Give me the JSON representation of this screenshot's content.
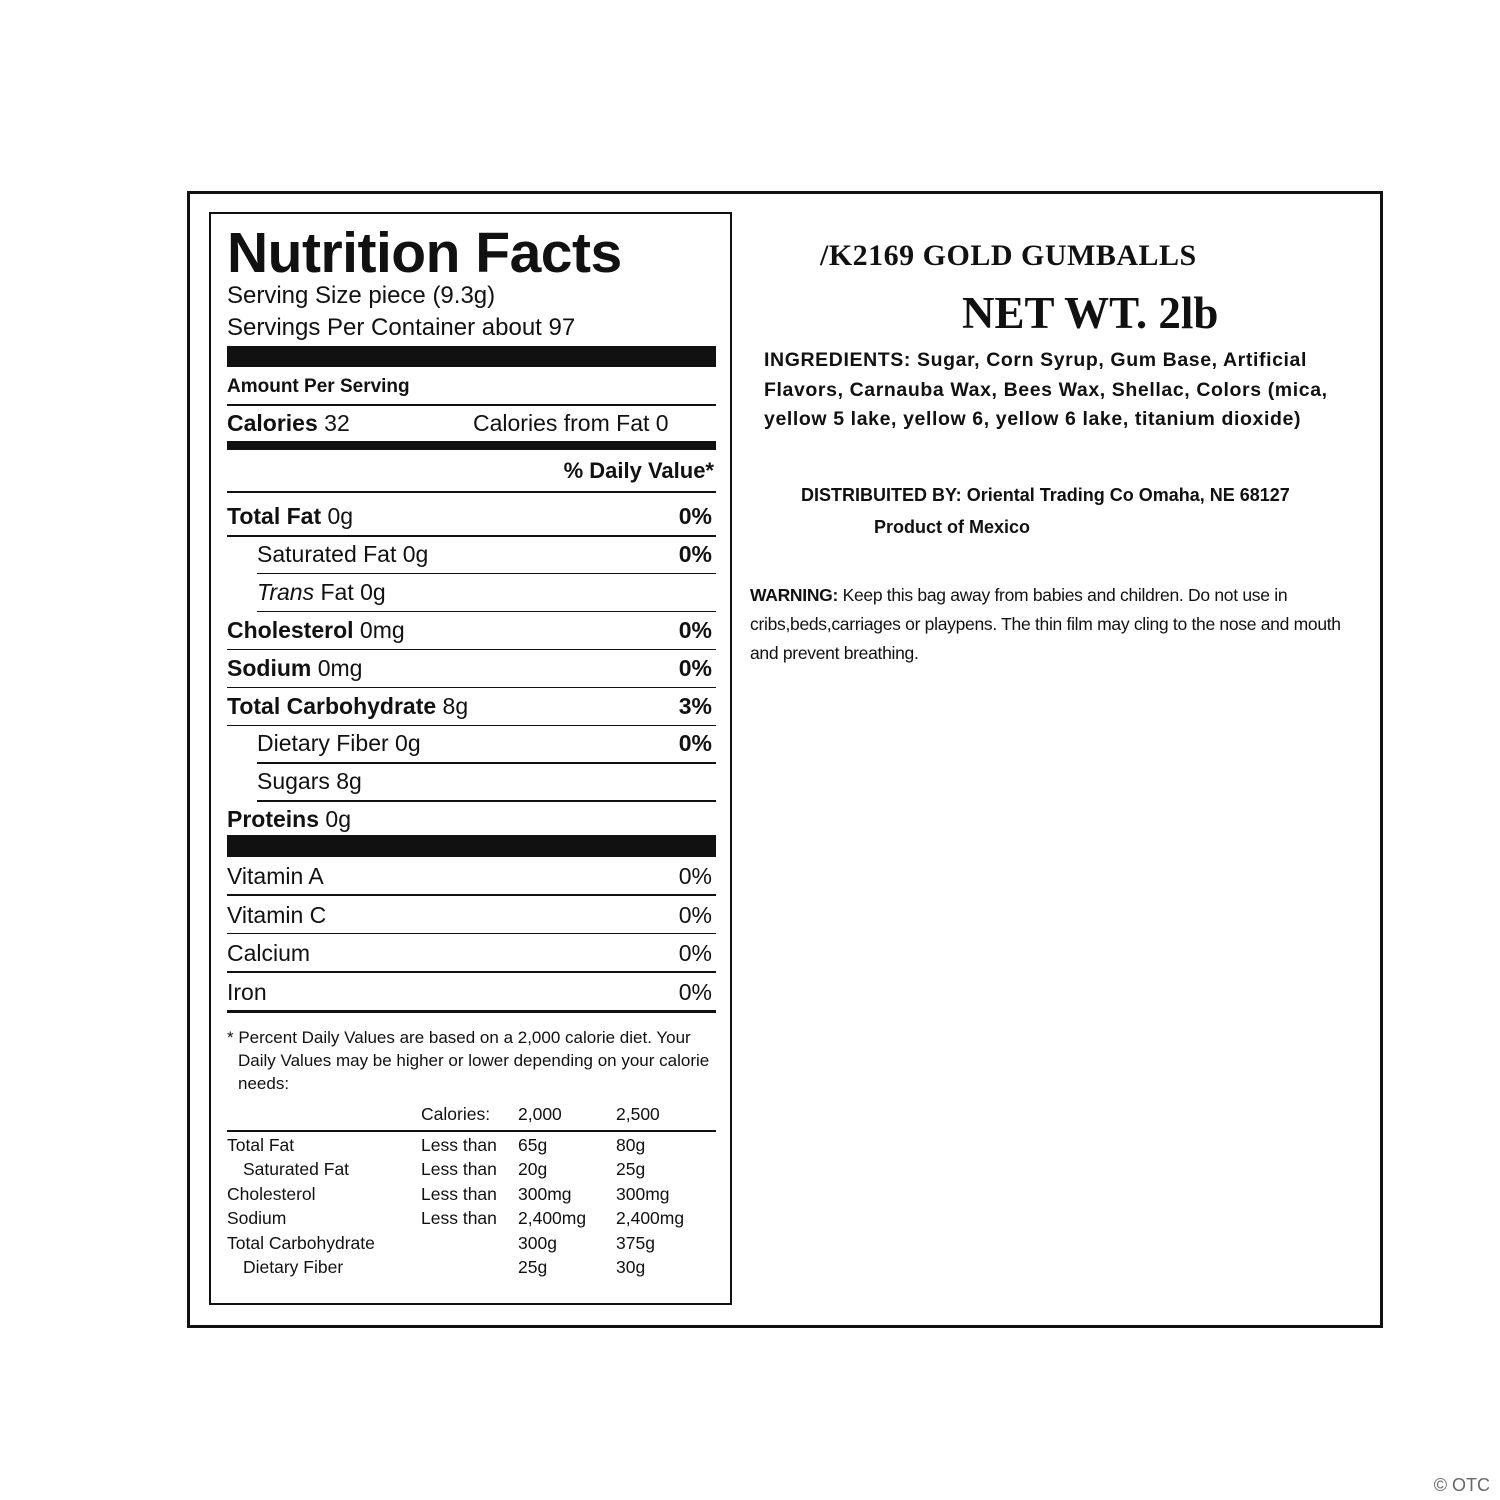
{
  "nutrition": {
    "title": "Nutrition Facts",
    "serving_size": "Serving Size  piece (9.3g)",
    "servings_per_container": "Servings Per Container about 97",
    "amount_per_serving": "Amount Per Serving",
    "calories": {
      "label": "Calories",
      "value": "32",
      "from_fat": "Calories from Fat 0"
    },
    "daily_value_header": "% Daily Value*",
    "nutrients": [
      {
        "label": "Total Fat",
        "amount": "0g",
        "dv": "0%"
      },
      {
        "label": "Saturated Fat",
        "amount": "0g",
        "dv": "0%",
        "indent": true
      },
      {
        "label_italic": "Trans",
        "label": "Fat",
        "amount": "0g",
        "indent": true
      },
      {
        "label": "Cholesterol",
        "amount": "0mg",
        "dv": "0%"
      },
      {
        "label": "Sodium",
        "amount": "0mg",
        "dv": "0%"
      },
      {
        "label": "Total Carbohydrate",
        "amount": "8g",
        "dv": "3%"
      },
      {
        "label": "Dietary Fiber",
        "amount": "0g",
        "dv": "0%",
        "indent": true
      },
      {
        "label": "Sugars",
        "amount": "8g",
        "indent": true
      },
      {
        "label": "Proteins",
        "amount": "0g"
      }
    ],
    "vitamins": [
      {
        "label": "Vitamin A",
        "dv": "0%"
      },
      {
        "label": "Vitamin C",
        "dv": "0%"
      },
      {
        "label": "Calcium",
        "dv": "0%"
      },
      {
        "label": "Iron",
        "dv": "0%"
      }
    ],
    "footnote": "* Percent Daily Values are based on a 2,000 calorie diet. Your Daily Values may be higher or lower depending on your calorie needs:",
    "reference_table": {
      "header": {
        "label": "Calories:",
        "columns": [
          "2,000",
          "2,500"
        ]
      },
      "rows": [
        {
          "name": "Total Fat",
          "qualifier": "Less than",
          "values": [
            "65g",
            "80g"
          ]
        },
        {
          "name": "Saturated Fat",
          "qualifier": "Less than",
          "values": [
            "20g",
            "25g"
          ],
          "indent": true
        },
        {
          "name": "Cholesterol",
          "qualifier": "Less than",
          "values": [
            "300mg",
            "300mg"
          ]
        },
        {
          "name": "Sodium",
          "qualifier": "Less than",
          "values": [
            "2,400mg",
            "2,400mg"
          ]
        },
        {
          "name": "Total Carbohydrate",
          "values": [
            "300g",
            "375g"
          ]
        },
        {
          "name": "Dietary Fiber",
          "values": [
            "25g",
            "30g"
          ],
          "indent": true
        }
      ]
    }
  },
  "product": {
    "title": "/K2169 GOLD GUMBALLS",
    "net_weight": "NET WT. 2lb",
    "ingredients_label": "INGREDIENTS:",
    "ingredients": "Sugar, Corn Syrup, Gum Base, Artificial Flavors, Carnauba Wax, Bees Wax, Shellac, Colors (mica, yellow 5 lake, yellow 6, yellow 6 lake, titanium dioxide)",
    "distributed_label": "DISTRIBUITED BY:",
    "distributed_by": "Oriental Trading Co Omaha, NE 68127",
    "origin": "Product of Mexico",
    "warning_label": "WARNING:",
    "warning": "Keep this bag away from babies and children. Do not use in cribs,beds,carriages or playpens. The thin film may cling to the nose and mouth and prevent breathing."
  },
  "watermark": "© OTC"
}
